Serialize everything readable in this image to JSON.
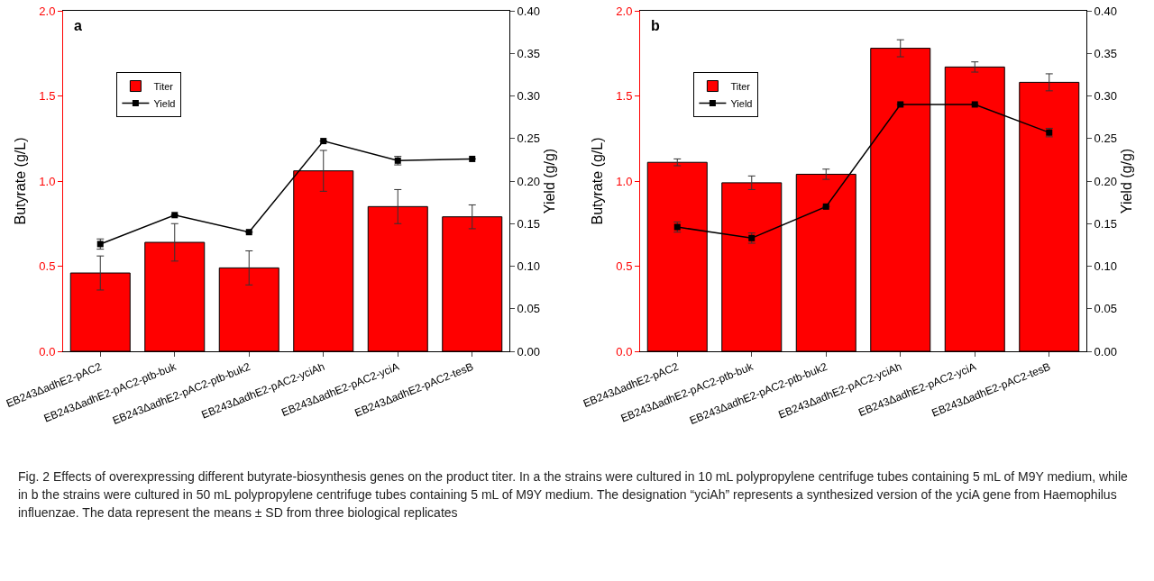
{
  "chart_data": [
    {
      "type": "bar",
      "categories": [
        "EB243ΔadhE2-pAC2",
        "EB243ΔadhE2-pAC2-ptb-buk",
        "EB243ΔadhE2-pAC2-ptb-buk2",
        "EB243ΔadhE2-pAC2-yciAh",
        "EB243ΔadhE2-pAC2-yciA",
        "EB243ΔadhE2-pAC2-tesB"
      ],
      "ylabel": "Butyrate (g/L)",
      "y2label": "Yield (g/g)",
      "series": [
        {
          "name": "Titer",
          "color": "#ff0000",
          "values": [
            0.46,
            0.64,
            0.49,
            1.06,
            0.85,
            0.79
          ],
          "errors": [
            0.1,
            0.11,
            0.1,
            0.12,
            0.1,
            0.07
          ]
        },
        {
          "name": "Yield",
          "type": "line",
          "axis": "y2",
          "color": "#000000",
          "marker": "square",
          "values": [
            0.126,
            0.16,
            0.14,
            0.247,
            0.224,
            0.226
          ],
          "errors": [
            0.006,
            null,
            null,
            null,
            0.005,
            null
          ]
        }
      ],
      "ylim": [
        0,
        2.0
      ],
      "yticks": [
        {
          "value": 0,
          "label": "0.0"
        },
        {
          "value": 0.5,
          "label": "0.5"
        },
        {
          "value": 1,
          "label": "1.0"
        },
        {
          "value": 1.5,
          "label": "1.5"
        },
        {
          "value": 2,
          "label": "2.0"
        }
      ],
      "y2lim": [
        0,
        0.4
      ],
      "y2ticks": [
        {
          "value": 0,
          "label": "0.00"
        },
        {
          "value": 0.05,
          "label": "0.05"
        },
        {
          "value": 0.1,
          "label": "0.10"
        },
        {
          "value": 0.15,
          "label": "0.15"
        },
        {
          "value": 0.2,
          "label": "0.20"
        },
        {
          "value": 0.25,
          "label": "0.25"
        },
        {
          "value": 0.3,
          "label": "0.30"
        },
        {
          "value": 0.35,
          "label": "0.35"
        },
        {
          "value": 0.4,
          "label": "0.40"
        }
      ],
      "legend": "top left",
      "grid": false,
      "annotations": [
        "a"
      ]
    },
    {
      "type": "bar",
      "categories": [
        "EB243ΔadhE2-pAC2",
        "EB243ΔadhE2-pAC2-ptb-buk",
        "EB243ΔadhE2-pAC2-ptb-buk2",
        "EB243ΔadhE2-pAC2-yciAh",
        "EB243ΔadhE2-pAC2-yciA",
        "EB243ΔadhE2-pAC2-tesB"
      ],
      "ylabel": "Butyrate (g/L)",
      "y2label": "Yield (g/g)",
      "series": [
        {
          "name": "Titer",
          "color": "#ff0000",
          "values": [
            1.11,
            0.99,
            1.04,
            1.78,
            1.67,
            1.58
          ],
          "errors": [
            0.02,
            0.04,
            0.03,
            0.05,
            0.03,
            0.05
          ]
        },
        {
          "name": "Yield",
          "type": "line",
          "axis": "y2",
          "color": "#000000",
          "marker": "square",
          "values": [
            0.146,
            0.133,
            0.17,
            0.29,
            0.29,
            0.257
          ],
          "errors": [
            0.006,
            0.006,
            null,
            null,
            null,
            0.005
          ]
        }
      ],
      "ylim": [
        0,
        2.0
      ],
      "yticks": [
        {
          "value": 0,
          "label": "0.0"
        },
        {
          "value": 0.5,
          "label": "0.5"
        },
        {
          "value": 1,
          "label": "1.0"
        },
        {
          "value": 1.5,
          "label": "1.5"
        },
        {
          "value": 2,
          "label": "2.0"
        }
      ],
      "y2lim": [
        0,
        0.4
      ],
      "y2ticks": [
        {
          "value": 0,
          "label": "0.00"
        },
        {
          "value": 0.05,
          "label": "0.05"
        },
        {
          "value": 0.1,
          "label": "0.10"
        },
        {
          "value": 0.15,
          "label": "0.15"
        },
        {
          "value": 0.2,
          "label": "0.20"
        },
        {
          "value": 0.25,
          "label": "0.25"
        },
        {
          "value": 0.3,
          "label": "0.30"
        },
        {
          "value": 0.35,
          "label": "0.35"
        },
        {
          "value": 0.4,
          "label": "0.40"
        }
      ],
      "legend": "top left",
      "grid": false,
      "annotations": [
        "b",
        "Fig. 2  Effects of overexpressing different butyrate-biosynthesis genes on the product titer. In a the strains were cultured in 10 mL polypropylene centrifuge tubes containing 5 mL of M9Y medium, while in b the strains were cultured in 50 mL polypropylene centrifuge tubes containing 5 mL of M9Y medium. The designation “yciAh” represents a synthesized version of the yciA gene from Haemophilus influenzae. The data represent the means ± SD from three biological replicates"
      ]
    }
  ]
}
